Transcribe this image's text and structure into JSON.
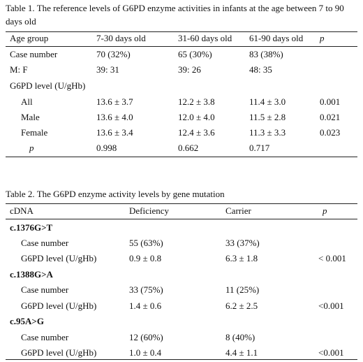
{
  "table1": {
    "caption": "Table 1. The reference levels of G6PD enzyme activities in infants at the age between 7 to 90 days old",
    "headers": [
      "Age group",
      "7-30 days old",
      "31-60 days old",
      "61-90 days old",
      "p"
    ],
    "rows": [
      {
        "label": "Case number",
        "c1": "70 (32%)",
        "c2": "65 (30%)",
        "c3": "83 (38%)",
        "p": ""
      },
      {
        "label": "M: F",
        "c1": "39: 31",
        "c2": "39: 26",
        "c3": "48: 35",
        "p": ""
      },
      {
        "label": "G6PD level (U/gHb)",
        "c1": "",
        "c2": "",
        "c3": "",
        "p": ""
      },
      {
        "label": "All",
        "c1": "13.6 ± 3.7",
        "c2": "12.2 ± 3.8",
        "c3": "11.4 ± 3.0",
        "p": "0.001"
      },
      {
        "label": "Male",
        "c1": "13.6 ± 4.0",
        "c2": "12.0 ± 4.0",
        "c3": "11.5 ± 2.8",
        "p": "0.021"
      },
      {
        "label": "Female",
        "c1": "13.6 ± 3.4",
        "c2": "12.4 ± 3.6",
        "c3": "11.3 ± 3.3",
        "p": "0.023"
      },
      {
        "label": "p",
        "c1": "0.998",
        "c2": "0.662",
        "c3": "0.717",
        "p": ""
      }
    ]
  },
  "table2": {
    "caption": "Table 2. The G6PD enzyme activity levels by gene mutation",
    "headers": [
      "cDNA",
      "Deficiency",
      "Carrier",
      "p"
    ],
    "groups": [
      {
        "name": "c.1376G>T",
        "case_label": "Case number",
        "case_def": "55 (63%)",
        "case_car": "33 (37%)",
        "level_label": "G6PD level (U/gHb)",
        "level_def": "0.9 ± 0.8",
        "level_car": "6.3 ± 1.8",
        "p": "< 0.001"
      },
      {
        "name": "c.1388G>A",
        "case_label": "Case number",
        "case_def": "33 (75%)",
        "case_car": "11 (25%)",
        "level_label": "G6PD level (U/gHb)",
        "level_def": "1.4 ± 0.6",
        "level_car": "6.2 ± 2.5",
        "p": "<0.001"
      },
      {
        "name": "c.95A>G",
        "case_label": "Case number",
        "case_def": "12 (60%)",
        "case_car": "8 (40%)",
        "level_label": "G6PD level (U/gHb)",
        "level_def": "1.0 ± 0.4",
        "level_car": "4.4 ± 1.1",
        "p": "<0.001"
      }
    ]
  }
}
